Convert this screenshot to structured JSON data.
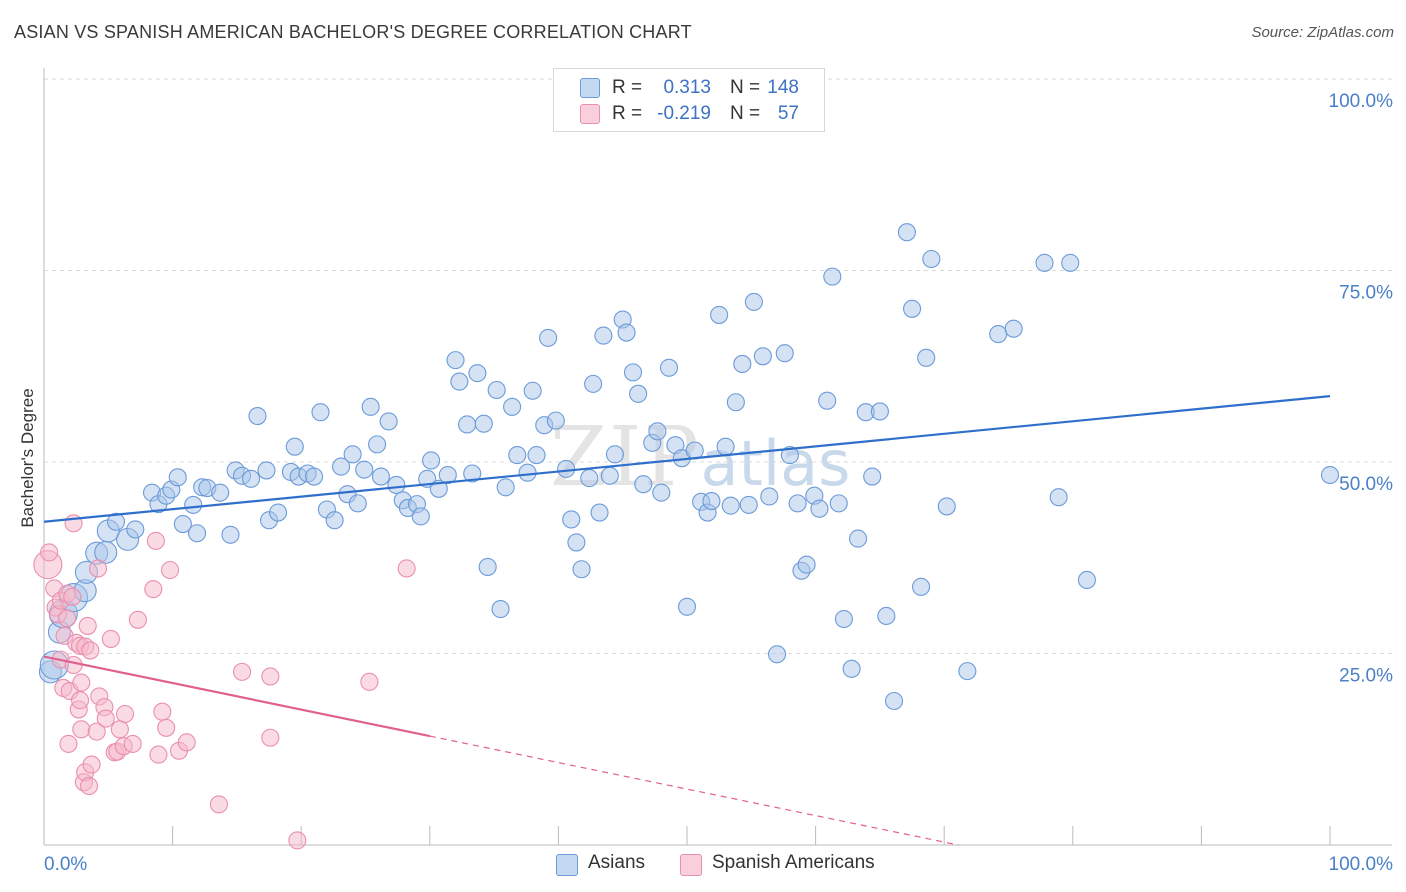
{
  "title": "ASIAN VS SPANISH AMERICAN BACHELOR'S DEGREE CORRELATION CHART",
  "source": "Source: ZipAtlas.com",
  "watermark": {
    "zip": "ZIP",
    "atlas": "atlas"
  },
  "colors": {
    "asian_fill": "#a9c5ea",
    "asian_stroke": "#6b9bd8",
    "asian_line": "#2f6fcc",
    "spanish_fill": "#f6b8ca",
    "spanish_stroke": "#ea8fae",
    "spanish_line": "#e0608e",
    "tick_text": "#4a80c8",
    "grid": "#d9d9d9"
  },
  "legend_top": {
    "rows": [
      {
        "r_label": "R =",
        "r_value": "0.313",
        "n_label": "N =",
        "n_value": "148"
      },
      {
        "r_label": "R =",
        "r_value": "-0.219",
        "n_label": "N =",
        "n_value": "57"
      }
    ]
  },
  "legend_bottom": {
    "asians": "Asians",
    "spanish": "Spanish Americans"
  },
  "chart_data": {
    "type": "scatter",
    "title": "ASIAN VS SPANISH AMERICAN BACHELOR'S DEGREE CORRELATION CHART",
    "xlabel": "",
    "ylabel": "Bachelor's Degree",
    "xlim": [
      0,
      100
    ],
    "ylim": [
      0,
      100
    ],
    "x_tick_labels": [
      "0.0%",
      "100.0%"
    ],
    "y_tick_labels": [
      {
        "value": 100,
        "label": "100.0%"
      },
      {
        "value": 75,
        "label": "75.0%"
      },
      {
        "value": 50,
        "label": "50.0%"
      },
      {
        "value": 25,
        "label": "25.0%"
      }
    ],
    "grid": true,
    "series": [
      {
        "name": "Asians",
        "r": 0.313,
        "n": 148,
        "trend": {
          "x0": 0,
          "y0": 42.2,
          "x1": 100,
          "y1": 58.6,
          "dash_from": null
        },
        "points": [
          [
            0.5,
            22.6,
            2
          ],
          [
            0.8,
            23.5,
            3
          ],
          [
            1.2,
            27.8,
            2
          ],
          [
            1.5,
            30.2,
            3
          ],
          [
            2.3,
            32.3,
            3
          ],
          [
            3.2,
            33.2,
            2
          ],
          [
            3.3,
            35.6,
            2
          ],
          [
            4.1,
            38.1,
            2
          ],
          [
            4.8,
            38.2,
            2
          ],
          [
            5.0,
            41.0,
            2
          ],
          [
            5.6,
            42.2,
            1
          ],
          [
            6.5,
            39.9,
            2
          ],
          [
            7.1,
            41.2,
            1
          ],
          [
            8.4,
            46.0,
            1
          ],
          [
            8.9,
            44.5,
            1
          ],
          [
            9.5,
            45.6,
            1
          ],
          [
            9.9,
            46.4,
            1
          ],
          [
            10.4,
            48.0,
            1
          ],
          [
            10.8,
            41.9,
            1
          ],
          [
            11.6,
            44.4,
            1
          ],
          [
            11.9,
            40.7,
            1
          ],
          [
            12.3,
            46.7,
            1
          ],
          [
            12.7,
            46.6,
            1
          ],
          [
            13.7,
            46.0,
            1
          ],
          [
            14.5,
            40.5,
            1
          ],
          [
            14.9,
            48.9,
            1
          ],
          [
            15.4,
            48.2,
            1
          ],
          [
            16.1,
            47.8,
            1
          ],
          [
            16.6,
            56.0,
            1
          ],
          [
            17.3,
            48.9,
            1
          ],
          [
            17.5,
            42.4,
            1
          ],
          [
            18.2,
            43.4,
            1
          ],
          [
            19.2,
            48.7,
            1
          ],
          [
            19.5,
            52.0,
            1
          ],
          [
            19.8,
            48.1,
            1
          ],
          [
            20.5,
            48.5,
            1
          ],
          [
            21.0,
            48.1,
            1
          ],
          [
            21.5,
            56.5,
            1
          ],
          [
            22.0,
            43.8,
            1
          ],
          [
            22.6,
            42.4,
            1
          ],
          [
            23.1,
            49.4,
            1
          ],
          [
            23.6,
            45.8,
            1
          ],
          [
            24.0,
            51.0,
            1
          ],
          [
            24.4,
            44.6,
            1
          ],
          [
            24.9,
            49.0,
            1
          ],
          [
            25.4,
            57.2,
            1
          ],
          [
            25.9,
            52.3,
            1
          ],
          [
            26.2,
            48.1,
            1
          ],
          [
            26.8,
            55.3,
            1
          ],
          [
            27.4,
            47.0,
            1
          ],
          [
            27.9,
            45.0,
            1
          ],
          [
            28.3,
            44.0,
            1
          ],
          [
            29.0,
            44.5,
            1
          ],
          [
            29.3,
            42.9,
            1
          ],
          [
            29.8,
            47.8,
            1
          ],
          [
            30.1,
            50.2,
            1
          ],
          [
            30.7,
            46.5,
            1
          ],
          [
            31.4,
            48.3,
            1
          ],
          [
            32.0,
            63.3,
            1
          ],
          [
            32.3,
            60.5,
            1
          ],
          [
            32.9,
            54.9,
            1
          ],
          [
            33.3,
            48.5,
            1
          ],
          [
            33.7,
            61.6,
            1
          ],
          [
            34.2,
            55.0,
            1
          ],
          [
            34.5,
            36.3,
            1
          ],
          [
            35.2,
            59.4,
            1
          ],
          [
            35.5,
            30.8,
            1
          ],
          [
            35.9,
            46.7,
            1
          ],
          [
            36.4,
            57.2,
            1
          ],
          [
            36.8,
            50.9,
            1
          ],
          [
            37.6,
            48.6,
            1
          ],
          [
            38.0,
            59.3,
            1
          ],
          [
            38.3,
            50.9,
            1
          ],
          [
            38.9,
            54.8,
            1
          ],
          [
            39.2,
            66.2,
            1
          ],
          [
            39.8,
            55.4,
            1
          ],
          [
            40.6,
            49.1,
            1
          ],
          [
            41.0,
            42.5,
            1
          ],
          [
            41.4,
            39.5,
            1
          ],
          [
            41.8,
            36.0,
            1
          ],
          [
            42.4,
            47.9,
            1
          ],
          [
            42.7,
            60.2,
            1
          ],
          [
            43.2,
            43.4,
            1
          ],
          [
            43.5,
            66.5,
            1
          ],
          [
            44.0,
            48.2,
            1
          ],
          [
            44.4,
            51.0,
            1
          ],
          [
            45.0,
            68.6,
            1
          ],
          [
            45.3,
            66.9,
            1
          ],
          [
            45.8,
            61.7,
            1
          ],
          [
            46.2,
            58.9,
            1
          ],
          [
            46.6,
            47.1,
            1
          ],
          [
            47.3,
            52.5,
            1
          ],
          [
            47.7,
            54.0,
            1
          ],
          [
            48.0,
            46.0,
            1
          ],
          [
            48.6,
            62.3,
            1
          ],
          [
            49.1,
            52.2,
            1
          ],
          [
            49.6,
            50.5,
            1
          ],
          [
            50.0,
            31.1,
            1
          ],
          [
            50.6,
            51.5,
            1
          ],
          [
            51.1,
            44.8,
            1
          ],
          [
            51.6,
            43.4,
            1
          ],
          [
            51.9,
            44.9,
            1
          ],
          [
            52.5,
            69.2,
            1
          ],
          [
            53.0,
            52.0,
            1
          ],
          [
            53.4,
            44.3,
            1
          ],
          [
            53.8,
            57.8,
            1
          ],
          [
            54.3,
            62.8,
            1
          ],
          [
            54.8,
            44.4,
            1
          ],
          [
            55.2,
            70.9,
            1
          ],
          [
            55.9,
            63.8,
            1
          ],
          [
            56.4,
            45.5,
            1
          ],
          [
            57.0,
            24.9,
            1
          ],
          [
            57.6,
            64.2,
            1
          ],
          [
            58.0,
            50.9,
            1
          ],
          [
            58.6,
            44.6,
            1
          ],
          [
            58.9,
            35.8,
            1
          ],
          [
            59.3,
            36.6,
            1
          ],
          [
            59.9,
            45.6,
            1
          ],
          [
            60.3,
            43.9,
            1
          ],
          [
            60.9,
            58.0,
            1
          ],
          [
            61.3,
            74.2,
            1
          ],
          [
            61.8,
            44.6,
            1
          ],
          [
            62.2,
            29.5,
            1
          ],
          [
            62.8,
            23.0,
            1
          ],
          [
            63.3,
            40.0,
            1
          ],
          [
            63.9,
            56.5,
            1
          ],
          [
            64.4,
            48.1,
            1
          ],
          [
            65.0,
            56.6,
            1
          ],
          [
            65.5,
            29.9,
            1
          ],
          [
            66.1,
            18.8,
            1
          ],
          [
            67.1,
            80.0,
            1
          ],
          [
            67.5,
            70.0,
            1
          ],
          [
            68.2,
            33.7,
            1
          ],
          [
            68.6,
            63.6,
            1
          ],
          [
            69.0,
            76.5,
            1
          ],
          [
            70.2,
            44.2,
            1
          ],
          [
            71.8,
            22.7,
            1
          ],
          [
            74.2,
            66.7,
            1
          ],
          [
            75.4,
            67.4,
            1
          ],
          [
            77.8,
            76.0,
            1
          ],
          [
            78.9,
            45.4,
            1
          ],
          [
            79.8,
            76.0,
            1
          ],
          [
            81.1,
            34.6,
            1
          ],
          [
            100.0,
            48.3,
            1
          ]
        ]
      },
      {
        "name": "Spanish Americans",
        "r": -0.219,
        "n": 57,
        "trend": {
          "x0": 0,
          "y0": 24.6,
          "x1": 100,
          "y1": -10.0,
          "dash_from": 30.0
        },
        "points": [
          [
            0.3,
            36.6,
            3
          ],
          [
            0.4,
            38.2,
            1
          ],
          [
            0.8,
            33.5,
            1
          ],
          [
            0.9,
            31.0,
            1
          ],
          [
            1.1,
            30.1,
            1
          ],
          [
            1.3,
            31.9,
            1
          ],
          [
            1.3,
            24.2,
            1
          ],
          [
            1.5,
            20.5,
            1
          ],
          [
            1.6,
            27.3,
            1
          ],
          [
            1.8,
            29.6,
            1
          ],
          [
            1.8,
            32.8,
            1
          ],
          [
            1.9,
            13.2,
            1
          ],
          [
            2.0,
            20.1,
            1
          ],
          [
            2.2,
            32.4,
            1
          ],
          [
            2.3,
            23.5,
            1
          ],
          [
            2.3,
            42.0,
            1
          ],
          [
            2.5,
            26.4,
            1
          ],
          [
            2.7,
            17.7,
            1
          ],
          [
            2.8,
            26.0,
            1
          ],
          [
            2.8,
            18.9,
            1
          ],
          [
            2.9,
            15.1,
            1
          ],
          [
            2.9,
            21.2,
            1
          ],
          [
            3.1,
            8.2,
            1
          ],
          [
            3.2,
            9.5,
            1
          ],
          [
            3.2,
            25.9,
            1
          ],
          [
            3.4,
            28.6,
            1
          ],
          [
            3.5,
            7.7,
            1
          ],
          [
            3.6,
            25.4,
            1
          ],
          [
            3.7,
            10.5,
            1
          ],
          [
            4.1,
            14.8,
            1
          ],
          [
            4.2,
            36.1,
            1
          ],
          [
            4.3,
            19.4,
            1
          ],
          [
            4.7,
            18.0,
            1
          ],
          [
            4.8,
            16.5,
            1
          ],
          [
            5.2,
            26.9,
            1
          ],
          [
            5.5,
            12.1,
            1
          ],
          [
            5.7,
            12.2,
            1
          ],
          [
            5.9,
            15.1,
            1
          ],
          [
            6.2,
            12.9,
            1
          ],
          [
            6.3,
            17.1,
            1
          ],
          [
            6.9,
            13.2,
            1
          ],
          [
            7.3,
            29.4,
            1
          ],
          [
            8.5,
            33.4,
            1
          ],
          [
            8.7,
            39.7,
            1
          ],
          [
            8.9,
            11.8,
            1
          ],
          [
            9.2,
            17.4,
            1
          ],
          [
            9.5,
            15.3,
            1
          ],
          [
            9.8,
            35.9,
            1
          ],
          [
            10.5,
            12.3,
            1
          ],
          [
            11.1,
            13.4,
            1
          ],
          [
            13.6,
            5.3,
            1
          ],
          [
            15.4,
            22.6,
            1
          ],
          [
            17.6,
            22.0,
            1
          ],
          [
            17.6,
            14.0,
            1
          ],
          [
            19.7,
            0.6,
            1
          ],
          [
            25.3,
            21.3,
            1
          ],
          [
            28.2,
            36.1,
            1
          ]
        ]
      }
    ]
  }
}
